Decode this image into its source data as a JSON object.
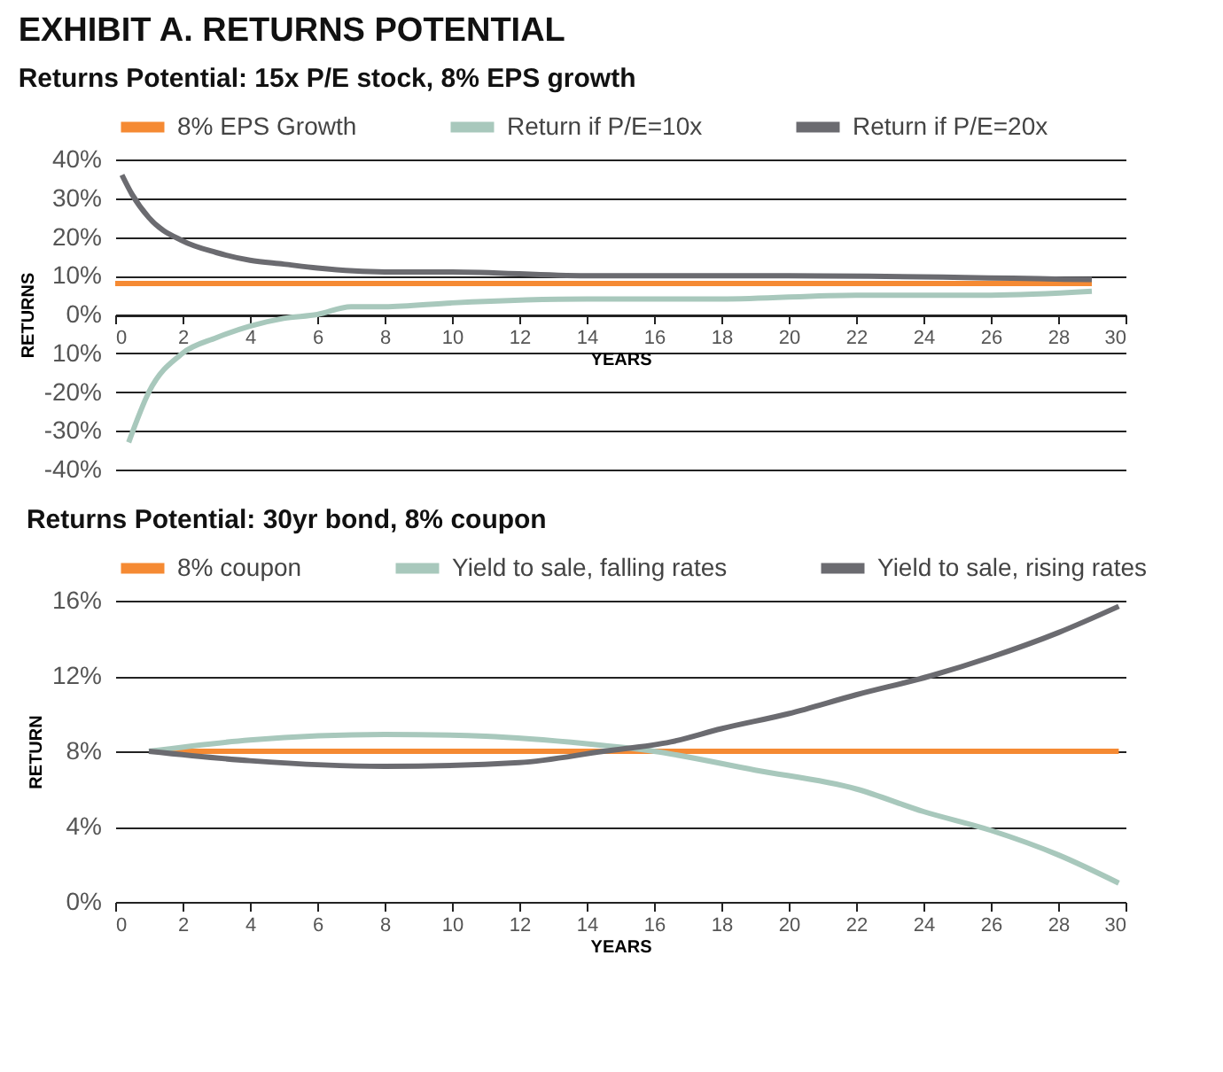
{
  "chart_data": [
    {
      "type": "line",
      "title": "EXHIBIT A. RETURNS POTENTIAL",
      "subtitle": "Returns Potential: 15x P/E stock, 8% EPS growth",
      "xlabel": "YEARS",
      "ylabel": "RETURNS",
      "xlim": [
        0,
        30
      ],
      "xticks": [
        0,
        2,
        4,
        6,
        8,
        10,
        12,
        14,
        16,
        18,
        20,
        22,
        24,
        26,
        28,
        30
      ],
      "ylim": [
        -40,
        40
      ],
      "yticks": [
        {
          "value": -40,
          "label": "-40%"
        },
        {
          "value": -30,
          "label": "-30%"
        },
        {
          "value": -20,
          "label": "-20%"
        },
        {
          "value": -10,
          "label": "10%"
        },
        {
          "value": 0,
          "label": "0%"
        },
        {
          "value": 10,
          "label": "10%"
        },
        {
          "value": 20,
          "label": "20%"
        },
        {
          "value": 30,
          "label": "30%"
        },
        {
          "value": 40,
          "label": "40%"
        }
      ],
      "grid": "y",
      "legend": "top",
      "line_style": "solid",
      "marker": "none",
      "series": [
        {
          "name": "8% EPS Growth",
          "color": "#f58a33",
          "x": [
            0,
            29
          ],
          "values": [
            8,
            8
          ]
        },
        {
          "name": "Return if P/E=10x",
          "color": "#a8c8bc",
          "x": [
            0.4,
            1,
            2,
            3,
            4,
            5,
            6,
            7,
            8,
            10,
            14,
            18,
            22,
            26,
            29
          ],
          "values": [
            -33,
            -20,
            -10,
            -6,
            -3,
            -1,
            0,
            2,
            2,
            3,
            4,
            4,
            5,
            5,
            6
          ]
        },
        {
          "name": "Return if P/E=20x",
          "color": "#6b6b70",
          "x": [
            0.2,
            0.5,
            1,
            2,
            3,
            4,
            5,
            6,
            8,
            10,
            14,
            20,
            29
          ],
          "values": [
            36,
            31,
            25,
            19,
            16,
            14,
            13,
            12,
            11,
            11,
            10,
            10,
            9
          ]
        }
      ]
    },
    {
      "type": "line",
      "title": "Returns Potential: 30yr bond, 8% coupon",
      "xlabel": "YEARS",
      "ylabel": "RETURN",
      "xlim": [
        0,
        30
      ],
      "xticks": [
        0,
        2,
        4,
        6,
        8,
        10,
        12,
        14,
        16,
        18,
        20,
        22,
        24,
        26,
        28,
        30
      ],
      "ylim": [
        0,
        16
      ],
      "yticks": [
        {
          "value": 0,
          "label": "0%"
        },
        {
          "value": 4,
          "label": "4%"
        },
        {
          "value": 8,
          "label": "8%"
        },
        {
          "value": 12,
          "label": "12%"
        },
        {
          "value": 16,
          "label": "16%"
        }
      ],
      "grid": "y",
      "legend": "top",
      "line_style": "solid",
      "marker": "none",
      "series": [
        {
          "name": "8% coupon",
          "color": "#f58a33",
          "x": [
            1,
            29.8
          ],
          "values": [
            8,
            8
          ]
        },
        {
          "name": "Yield to sale, falling rates",
          "color": "#a8c8bc",
          "x": [
            1,
            4,
            8,
            11,
            14,
            16,
            19,
            22,
            24,
            26,
            28,
            29.8
          ],
          "values": [
            8,
            8.6,
            8.9,
            8.8,
            8.4,
            8,
            7,
            6,
            4.8,
            3.8,
            2.5,
            1
          ]
        },
        {
          "name": "Yield to sale, rising rates",
          "color": "#6b6b70",
          "x": [
            1,
            4,
            8,
            12,
            14.5,
            16.5,
            18,
            20,
            22,
            24.2,
            26,
            28,
            29.8
          ],
          "values": [
            8,
            7.5,
            7.2,
            7.4,
            8,
            8.5,
            9.2,
            10,
            11,
            12,
            13,
            14.3,
            15.7
          ]
        }
      ]
    }
  ]
}
